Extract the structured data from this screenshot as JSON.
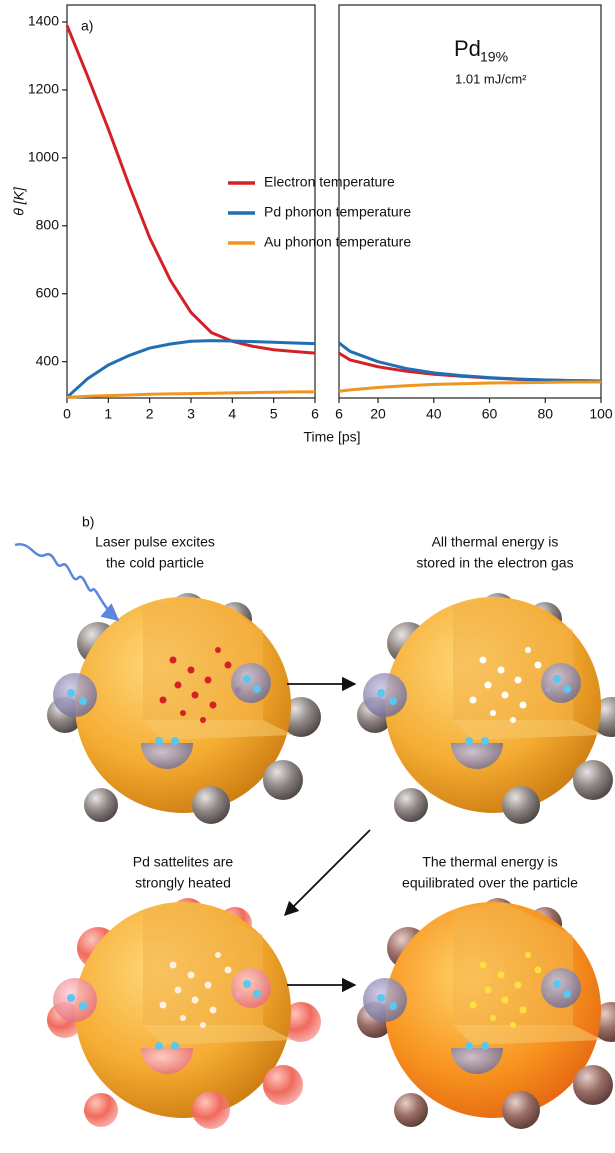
{
  "chart_data": [
    {
      "type": "line",
      "panel_label": "a)",
      "ylabel": "θ [K]",
      "xlabel": "Time [ps]",
      "xlim": [
        0,
        6
      ],
      "xticks": [
        0,
        1,
        2,
        3,
        4,
        5,
        6
      ],
      "ylim": [
        293,
        1450
      ],
      "yticks": [
        400,
        600,
        800,
        1000,
        1200,
        1400
      ],
      "legend": "center",
      "x": [
        0,
        0.5,
        1,
        1.5,
        2,
        2.5,
        3,
        3.5,
        4,
        4.5,
        5,
        5.5,
        6
      ],
      "series": [
        {
          "name": "Electron temperature",
          "color": "#d42027",
          "values": [
            1390,
            1240,
            1085,
            920,
            765,
            640,
            545,
            485,
            460,
            445,
            435,
            430,
            425
          ]
        },
        {
          "name": "Pd phonon temperature",
          "color": "#1f6fb2",
          "values": [
            295,
            350,
            390,
            418,
            440,
            452,
            460,
            462,
            461,
            459,
            457,
            455,
            453
          ]
        },
        {
          "name": "Au phonon temperature",
          "color": "#f0961e",
          "values": [
            295,
            298,
            300,
            302,
            304,
            305,
            306,
            307,
            308,
            309,
            310,
            311,
            311
          ]
        }
      ]
    },
    {
      "type": "line",
      "xlim": [
        6,
        100
      ],
      "xticks": [
        6,
        20,
        40,
        60,
        80,
        100
      ],
      "ylim": [
        293,
        1450
      ],
      "annotations": [
        "Pd",
        "19%",
        "1.01 mJ/cm²"
      ],
      "x": [
        6,
        10,
        20,
        30,
        40,
        50,
        60,
        70,
        80,
        90,
        100
      ],
      "series": [
        {
          "name": "Electron temperature",
          "color": "#d42027",
          "values": [
            425,
            405,
            385,
            372,
            363,
            357,
            352,
            348,
            346,
            344,
            343
          ]
        },
        {
          "name": "Pd phonon temperature",
          "color": "#1f6fb2",
          "values": [
            455,
            430,
            400,
            380,
            367,
            359,
            353,
            349,
            346,
            344,
            343
          ]
        },
        {
          "name": "Au phonon temperature",
          "color": "#f0961e",
          "values": [
            313,
            317,
            324,
            329,
            333,
            335,
            337,
            338,
            339,
            340,
            340
          ]
        }
      ]
    }
  ],
  "panel_b": {
    "label": "b)",
    "captions": [
      [
        "Laser pulse excites",
        "the cold particle"
      ],
      [
        "All thermal energy is",
        "stored in the electron gas"
      ],
      [
        "Pd sattelites are",
        "strongly heated"
      ],
      [
        "The thermal energy is",
        "equilibrated over the particle"
      ]
    ]
  }
}
